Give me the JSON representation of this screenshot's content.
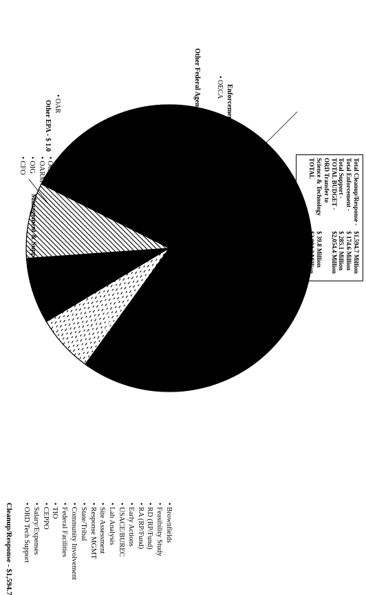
{
  "chart_data": {
    "type": "pie",
    "unit": "$ Million",
    "slices": [
      {
        "name": "Cleanup/Response",
        "value": 1594.7,
        "label": "Cleanup/Response - $1,594.7",
        "percent_label": "77.6%",
        "fill": "#000000",
        "items": [
          "Brownfields",
          "Feasibility Study",
          "RD (RP/Fund)",
          "RA (RP/Fund)",
          "Early Actions",
          "USACE/BUREC",
          "Lab Analysis",
          "Site Assessment",
          "Response MGMT",
          "State/Tribal",
          "Community Involvement",
          "Federal Facilities",
          "TIO",
          "CEPPO",
          "Salary/Expenses",
          "ORD Tech Support"
        ]
      },
      {
        "name": "Enforcement",
        "value": 174.6,
        "label": "Enforcement - $174.6",
        "percent_label": "8.5%",
        "fill": "hatch",
        "items": [
          "OECA"
        ]
      },
      {
        "name": "Other Federal Agencies",
        "value": 152.0,
        "label": "Other Federal Agencies - $152.0",
        "percent_label": "",
        "fill": "#000000",
        "items": []
      },
      {
        "name": "Other EPA",
        "value": 1.0,
        "label": "Other EPA - $ 1.0",
        "percent_label": "0.1%",
        "fill": "#000000",
        "items": [
          "OAR"
        ]
      },
      {
        "name": "Management & Support",
        "value": 132.1,
        "label": "Management & Support - $132.1",
        "percent_label": "6.4%",
        "fill": "dashes",
        "items": [
          "OARM",
          "OA",
          "OIG",
          "OPPE",
          "CFO",
          "OGC"
        ]
      }
    ]
  },
  "summary_table": {
    "rows": [
      {
        "label": "Total Cleanup/Response -",
        "value": "$1,594.7 Million"
      },
      {
        "label": "Total Enforcement -",
        "value": "$  174.6 Million"
      },
      {
        "label": "Total Support -",
        "value": "$  285.1 Million"
      },
      {
        "label": "TOTAL BUDGET -",
        "value": "$2,054.4 Million"
      },
      {
        "label": "ORD Transfer to",
        "value": ""
      },
      {
        "label": "Science & Technology",
        "value": "$   39.8 Million"
      },
      {
        "label": "TOTAL",
        "value": "$2,094.2 Million"
      }
    ]
  },
  "labels": {
    "cleanup_title": "Cleanup/Response - $1,594.7",
    "cleanup_items": [
      "• Brownfields",
      "• Feasibility Study",
      "• RD (RP/Fund)",
      "• RA (RP/Fund)",
      "• Early Actions",
      "• USACE/BUREC",
      "• Lab Analysis",
      "• Site Assessment",
      "• Response MGMT",
      "• State/Tribal",
      "• Community Involvement",
      "• Federal Facilities",
      "• TIO",
      "• CEPPO",
      "• Salary/Expenses",
      "• ORD Tech Support"
    ],
    "pct_cleanup": "77.6%",
    "pct_enforcement": "8.5%",
    "pct_mgmt": "6.4%",
    "pct_other_epa": "0.1%",
    "enforcement_title": "Enforcement  - $174.6",
    "enforcement_item": "• OECA",
    "other_fed_title": "Other Federal Agencies - $152.0",
    "other_epa_title": "Other EPA - $ 1.0",
    "other_epa_item": "• OAR",
    "mgmt_title": "Management & Support - $132.1",
    "mgmt_col1": [
      "• OARM",
      "• OIG",
      "• CFO"
    ],
    "mgmt_col2": [
      "• OA",
      "• OPPE",
      "• OGC"
    ]
  }
}
